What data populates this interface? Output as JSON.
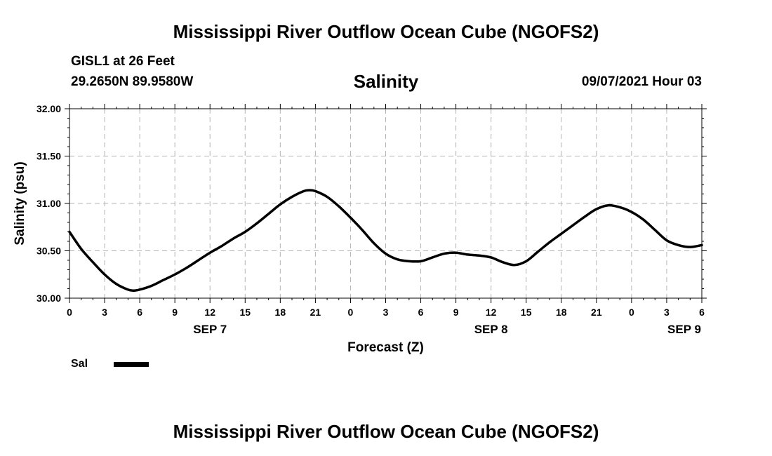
{
  "header": {
    "title": "Mississippi River Outflow Ocean Cube (NGOFS2)",
    "station": "GISL1 at 26 Feet",
    "coords": "29.2650N  89.9580W",
    "subtitle": "Salinity",
    "datetime": "09/07/2021 Hour 03"
  },
  "footer": {
    "title": "Mississippi River Outflow Ocean Cube (NGOFS2)"
  },
  "legend": {
    "label": "Sal",
    "color": "#000000"
  },
  "chart_data": {
    "type": "line",
    "title": "Salinity",
    "xlabel": "Forecast (Z)",
    "ylabel": "Salinity (psu)",
    "x_unit": "hours since SEP 7 00Z",
    "xlim": [
      0,
      54
    ],
    "ylim": [
      30.0,
      32.0
    ],
    "x_tick_labels": [
      "0",
      "3",
      "6",
      "9",
      "12",
      "15",
      "18",
      "21",
      "0",
      "3",
      "6",
      "9",
      "12",
      "15",
      "18",
      "21",
      "0",
      "3",
      "6"
    ],
    "y_tick_labels": [
      "30.00",
      "30.50",
      "31.00",
      "31.50",
      "32.00"
    ],
    "y_ticks": [
      30.0,
      30.5,
      31.0,
      31.5,
      32.0
    ],
    "date_labels": [
      {
        "label": "SEP 7",
        "hour": 12
      },
      {
        "label": "SEP 8",
        "hour": 36
      },
      {
        "label": "SEP 9",
        "hour": 52.5
      }
    ],
    "grid": true,
    "legend_position": "bottom-left",
    "series": [
      {
        "name": "Sal",
        "color": "#000000",
        "x": [
          0,
          1,
          2,
          3,
          4,
          5,
          5.5,
          6,
          7,
          8,
          9,
          10,
          11,
          12,
          13,
          14,
          15,
          16,
          17,
          18,
          19,
          20,
          20.5,
          21,
          22,
          23,
          24,
          25,
          26,
          27,
          28,
          29,
          30,
          31,
          32,
          33,
          34,
          35,
          36,
          37,
          38,
          39,
          40,
          41,
          42,
          43,
          44,
          45,
          46,
          47,
          48,
          49,
          50,
          51,
          52,
          53,
          54
        ],
        "y": [
          30.7,
          30.52,
          30.38,
          30.25,
          30.15,
          30.09,
          30.08,
          30.09,
          30.13,
          30.19,
          30.25,
          30.32,
          30.4,
          30.48,
          30.55,
          30.63,
          30.7,
          30.79,
          30.89,
          30.99,
          31.07,
          31.13,
          31.14,
          31.13,
          31.07,
          30.97,
          30.85,
          30.72,
          30.58,
          30.47,
          30.41,
          30.39,
          30.39,
          30.43,
          30.47,
          30.48,
          30.46,
          30.45,
          30.43,
          30.38,
          30.35,
          30.39,
          30.49,
          30.59,
          30.68,
          30.77,
          30.86,
          30.94,
          30.98,
          30.96,
          30.91,
          30.83,
          30.72,
          30.61,
          30.56,
          30.54,
          30.56
        ]
      }
    ]
  }
}
